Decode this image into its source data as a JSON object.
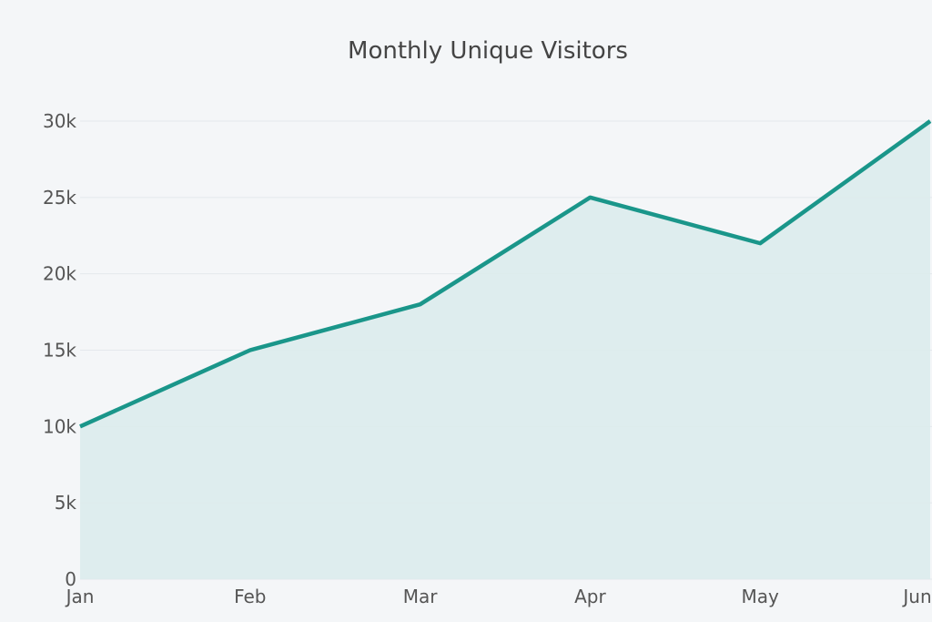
{
  "chart_data": {
    "type": "area",
    "title": "Monthly Unique Visitors",
    "xlabel": "",
    "ylabel": "",
    "categories": [
      "Jan",
      "Feb",
      "Mar",
      "Apr",
      "May",
      "Jun"
    ],
    "series": [
      {
        "values": [
          10000,
          15000,
          18000,
          25000,
          22000,
          30000
        ]
      }
    ],
    "ylim": [
      0,
      30000
    ],
    "yticks": [
      0,
      5000,
      10000,
      15000,
      20000,
      25000,
      30000
    ],
    "ytick_labels": [
      "0",
      "5k",
      "10k",
      "15k",
      "20k",
      "25k",
      "30k"
    ],
    "grid": true,
    "legend": "none",
    "colors": {
      "line": "#1a968a",
      "fill": "#dcecec",
      "background": "#f4f6f8",
      "grid": "#e4e8ec"
    }
  }
}
